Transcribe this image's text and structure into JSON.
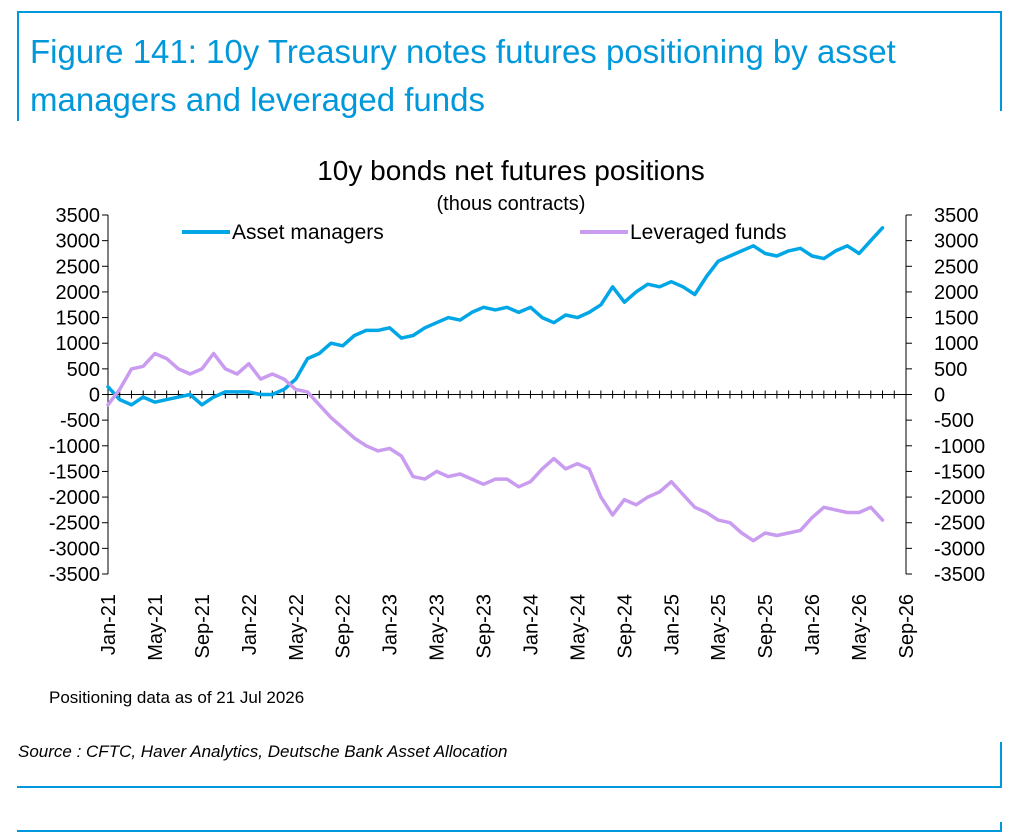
{
  "figure_title": "Figure 141: 10y Treasury notes futures positioning by asset managers and leveraged funds",
  "footnote": "Positioning data as of 21 Jul 2026",
  "source": "Source : CFTC, Haver Analytics, Deutsche Bank Asset Allocation",
  "colors": {
    "brand": "#0098db",
    "asset_managers": "#00a6e6",
    "leveraged_funds": "#c99cf0"
  },
  "chart_data": {
    "type": "line",
    "title": "10y bonds net futures positions",
    "subtitle": "(thous contracts)",
    "ylim": [
      -3500,
      3500
    ],
    "yticks": [
      "3500",
      "3000",
      "2500",
      "2000",
      "1500",
      "1000",
      "500",
      "0",
      "-500",
      "-1000",
      "-1500",
      "-2000",
      "-2500",
      "-3000",
      "-3500"
    ],
    "y2ticks": [
      "3500",
      "3000",
      "2500",
      "2000",
      "1500",
      "1000",
      "500",
      "0",
      "-500",
      "-1000",
      "-1500",
      "-2000",
      "-2500",
      "-3000",
      "-3500"
    ],
    "xticks": [
      "Jan-21",
      "May-21",
      "Sep-21",
      "Jan-22",
      "May-22",
      "Sep-22",
      "Jan-23",
      "May-23",
      "Sep-23",
      "Jan-24",
      "May-24",
      "Sep-24",
      "Jan-25",
      "May-25",
      "Sep-25",
      "Jan-26",
      "May-26",
      "Sep-26"
    ],
    "x_months_from_jan21_note": "",
    "legend_position": "top",
    "series": [
      {
        "name": "Asset managers",
        "x": [
          "Jan-21",
          "Feb-21",
          "Mar-21",
          "Apr-21",
          "May-21",
          "Jun-21",
          "Jul-21",
          "Aug-21",
          "Sep-21",
          "Oct-21",
          "Nov-21",
          "Dec-21",
          "Jan-22",
          "Feb-22",
          "Mar-22",
          "Apr-22",
          "May-22",
          "Jun-22",
          "Jul-22",
          "Aug-22",
          "Sep-22",
          "Oct-22",
          "Nov-22",
          "Dec-22",
          "Jan-23",
          "Feb-23",
          "Mar-23",
          "Apr-23",
          "May-23",
          "Jun-23",
          "Jul-23",
          "Aug-23",
          "Sep-23",
          "Oct-23",
          "Nov-23",
          "Dec-23",
          "Jan-24",
          "Feb-24",
          "Mar-24",
          "Apr-24",
          "May-24",
          "Jun-24",
          "Jul-24",
          "Aug-24",
          "Sep-24",
          "Oct-24",
          "Nov-24",
          "Dec-24",
          "Jan-25",
          "Feb-25",
          "Mar-25",
          "Apr-25",
          "May-25",
          "Jun-25",
          "Jul-25",
          "Aug-25",
          "Sep-25",
          "Oct-25",
          "Nov-25",
          "Dec-25",
          "Jan-26",
          "Feb-26",
          "Mar-26",
          "Apr-26",
          "May-26",
          "Jun-26",
          "Jul-26"
        ],
        "values": [
          150,
          -100,
          -200,
          -50,
          -150,
          -100,
          -50,
          0,
          -200,
          -50,
          50,
          50,
          50,
          0,
          0,
          100,
          300,
          700,
          800,
          1000,
          950,
          1150,
          1250,
          1250,
          1300,
          1100,
          1150,
          1300,
          1400,
          1500,
          1450,
          1600,
          1700,
          1650,
          1700,
          1600,
          1700,
          1500,
          1400,
          1550,
          1500,
          1600,
          1750,
          2100,
          1800,
          2000,
          2150,
          2100,
          2200,
          2100,
          1950,
          2300,
          2600,
          2700,
          2800,
          2900,
          2750,
          2700,
          2800,
          2850,
          2700,
          2650,
          2800,
          2900,
          2750,
          3000,
          3250
        ]
      },
      {
        "name": "Leveraged funds",
        "x": [
          "Jan-21",
          "Feb-21",
          "Mar-21",
          "Apr-21",
          "May-21",
          "Jun-21",
          "Jul-21",
          "Aug-21",
          "Sep-21",
          "Oct-21",
          "Nov-21",
          "Dec-21",
          "Jan-22",
          "Feb-22",
          "Mar-22",
          "Apr-22",
          "May-22",
          "Jun-22",
          "Jul-22",
          "Aug-22",
          "Sep-22",
          "Oct-22",
          "Nov-22",
          "Dec-22",
          "Jan-23",
          "Feb-23",
          "Mar-23",
          "Apr-23",
          "May-23",
          "Jun-23",
          "Jul-23",
          "Aug-23",
          "Sep-23",
          "Oct-23",
          "Nov-23",
          "Dec-23",
          "Jan-24",
          "Feb-24",
          "Mar-24",
          "Apr-24",
          "May-24",
          "Jun-24",
          "Jul-24",
          "Aug-24",
          "Sep-24",
          "Oct-24",
          "Nov-24",
          "Dec-24",
          "Jan-25",
          "Feb-25",
          "Mar-25",
          "Apr-25",
          "May-25",
          "Jun-25",
          "Jul-25",
          "Aug-25",
          "Sep-25",
          "Oct-25",
          "Nov-25",
          "Dec-25",
          "Jan-26",
          "Feb-26",
          "Mar-26",
          "Apr-26",
          "May-26",
          "Jun-26",
          "Jul-26"
        ],
        "values": [
          -200,
          100,
          500,
          550,
          800,
          700,
          500,
          400,
          500,
          800,
          500,
          400,
          600,
          300,
          400,
          300,
          100,
          50,
          -200,
          -450,
          -650,
          -850,
          -1000,
          -1100,
          -1050,
          -1200,
          -1600,
          -1650,
          -1500,
          -1600,
          -1550,
          -1650,
          -1750,
          -1650,
          -1650,
          -1800,
          -1700,
          -1450,
          -1250,
          -1450,
          -1350,
          -1450,
          -2000,
          -2350,
          -2050,
          -2150,
          -2000,
          -1900,
          -1700,
          -1950,
          -2200,
          -2300,
          -2450,
          -2500,
          -2700,
          -2850,
          -2700,
          -2750,
          -2700,
          -2650,
          -2400,
          -2200,
          -2250,
          -2300,
          -2300,
          -2200,
          -2450
        ]
      }
    ]
  }
}
